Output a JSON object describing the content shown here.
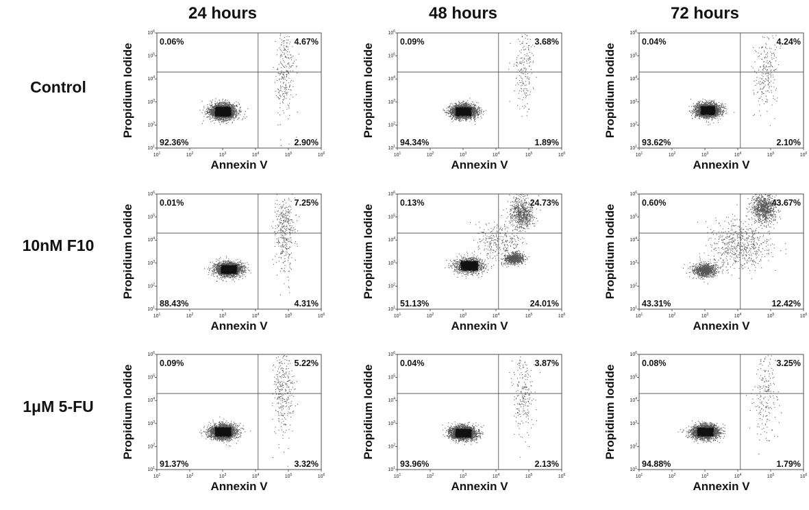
{
  "figure": {
    "column_titles": [
      "24 hours",
      "48 hours",
      "72 hours"
    ],
    "row_titles": [
      "Control",
      "10nM F10",
      "1μM 5-FU"
    ]
  },
  "chart_data": [
    {
      "type": "scatter",
      "row": "Control",
      "column": "24 hours",
      "xlabel": "Annexin V",
      "ylabel": "Propidium Iodide",
      "xscale": "log",
      "yscale": "log",
      "xlim": [
        10,
        1000000
      ],
      "ylim": [
        10,
        1000000
      ],
      "quadrant_gate": {
        "x": 12000,
        "y": 20000
      },
      "quadrants": {
        "upper_left": "0.06%",
        "upper_right": "4.67%",
        "lower_left": "92.36%",
        "lower_right": "2.90%"
      },
      "clusters": [
        {
          "x": 1000,
          "y": 400,
          "spread_x": 0.2,
          "spread_y": 0.17,
          "n": 2600
        },
        {
          "x": 75000,
          "y": 20000,
          "spread_x": 0.15,
          "spread_y": 0.9,
          "n": 260
        }
      ]
    },
    {
      "type": "scatter",
      "row": "Control",
      "column": "48 hours",
      "xlabel": "Annexin V",
      "ylabel": "Propidium Iodide",
      "xscale": "log",
      "yscale": "log",
      "xlim": [
        10,
        1000000
      ],
      "ylim": [
        10,
        1000000
      ],
      "quadrant_gate": {
        "x": 12000,
        "y": 20000
      },
      "quadrants": {
        "upper_left": "0.09%",
        "upper_right": "3.68%",
        "lower_left": "94.34%",
        "lower_right": "1.89%"
      },
      "clusters": [
        {
          "x": 1000,
          "y": 400,
          "spread_x": 0.2,
          "spread_y": 0.15,
          "n": 2600
        },
        {
          "x": 70000,
          "y": 30000,
          "spread_x": 0.15,
          "spread_y": 0.9,
          "n": 200
        }
      ]
    },
    {
      "type": "scatter",
      "row": "Control",
      "column": "72 hours",
      "xlabel": "Annexin V",
      "ylabel": "Propidium Iodide",
      "xscale": "log",
      "yscale": "log",
      "xlim": [
        10,
        1000000
      ],
      "ylim": [
        10,
        1000000
      ],
      "quadrant_gate": {
        "x": 12000,
        "y": 20000
      },
      "quadrants": {
        "upper_left": "0.04%",
        "upper_right": "4.24%",
        "lower_left": "93.62%",
        "lower_right": "2.10%"
      },
      "clusters": [
        {
          "x": 1200,
          "y": 450,
          "spread_x": 0.18,
          "spread_y": 0.15,
          "n": 2600
        },
        {
          "x": 70000,
          "y": 25000,
          "spread_x": 0.18,
          "spread_y": 0.9,
          "n": 230
        }
      ]
    },
    {
      "type": "scatter",
      "row": "10nM F10",
      "column": "24 hours",
      "xlabel": "Annexin V",
      "ylabel": "Propidium Iodide",
      "xscale": "log",
      "yscale": "log",
      "xlim": [
        10,
        1000000
      ],
      "ylim": [
        10,
        1000000
      ],
      "quadrant_gate": {
        "x": 12000,
        "y": 20000
      },
      "quadrants": {
        "upper_left": "0.01%",
        "upper_right": "7.25%",
        "lower_left": "88.43%",
        "lower_right": "4.31%"
      },
      "clusters": [
        {
          "x": 1500,
          "y": 550,
          "spread_x": 0.2,
          "spread_y": 0.15,
          "n": 2500
        },
        {
          "x": 75000,
          "y": 25000,
          "spread_x": 0.15,
          "spread_y": 0.9,
          "n": 380
        }
      ]
    },
    {
      "type": "scatter",
      "row": "10nM F10",
      "column": "48 hours",
      "xlabel": "Annexin V",
      "ylabel": "Propidium Iodide",
      "xscale": "log",
      "yscale": "log",
      "xlim": [
        10,
        1000000
      ],
      "ylim": [
        10,
        1000000
      ],
      "quadrant_gate": {
        "x": 12000,
        "y": 20000
      },
      "quadrants": {
        "upper_left": "0.13%",
        "upper_right": "24.73%",
        "lower_left": "51.13%",
        "lower_right": "24.01%"
      },
      "clusters": [
        {
          "x": 1500,
          "y": 800,
          "spread_x": 0.22,
          "spread_y": 0.17,
          "n": 1200
        },
        {
          "x": 35000,
          "y": 1600,
          "spread_x": 0.14,
          "spread_y": 0.12,
          "n": 700
        },
        {
          "x": 60000,
          "y": 150000,
          "spread_x": 0.18,
          "spread_y": 0.35,
          "n": 700
        },
        {
          "x": 12000,
          "y": 8000,
          "spread_x": 0.35,
          "spread_y": 0.45,
          "n": 300
        }
      ]
    },
    {
      "type": "scatter",
      "row": "10nM F10",
      "column": "72 hours",
      "xlabel": "Annexin V",
      "ylabel": "Propidium Iodide",
      "xscale": "log",
      "yscale": "log",
      "xlim": [
        10,
        1000000
      ],
      "ylim": [
        10,
        1000000
      ],
      "quadrant_gate": {
        "x": 12000,
        "y": 20000
      },
      "quadrants": {
        "upper_left": "0.60%",
        "upper_right": "43.67%",
        "lower_left": "43.31%",
        "lower_right": "12.42%"
      },
      "clusters": [
        {
          "x": 1000,
          "y": 500,
          "spread_x": 0.18,
          "spread_y": 0.15,
          "n": 900
        },
        {
          "x": 60000,
          "y": 250000,
          "spread_x": 0.18,
          "spread_y": 0.3,
          "n": 900
        },
        {
          "x": 12000,
          "y": 6000,
          "spread_x": 0.45,
          "spread_y": 0.55,
          "n": 600
        }
      ]
    },
    {
      "type": "scatter",
      "row": "1μM 5-FU",
      "column": "24 hours",
      "xlabel": "Annexin V",
      "ylabel": "Propidium Iodide",
      "xscale": "log",
      "yscale": "log",
      "xlim": [
        10,
        1000000
      ],
      "ylim": [
        10,
        1000000
      ],
      "quadrant_gate": {
        "x": 12000,
        "y": 20000
      },
      "quadrants": {
        "upper_left": "0.09%",
        "upper_right": "5.22%",
        "lower_left": "91.37%",
        "lower_right": "3.32%"
      },
      "clusters": [
        {
          "x": 1000,
          "y": 450,
          "spread_x": 0.2,
          "spread_y": 0.16,
          "n": 2600
        },
        {
          "x": 70000,
          "y": 20000,
          "spread_x": 0.15,
          "spread_y": 0.9,
          "n": 300
        }
      ]
    },
    {
      "type": "scatter",
      "row": "1μM 5-FU",
      "column": "48 hours",
      "xlabel": "Annexin V",
      "ylabel": "Propidium Iodide",
      "xscale": "log",
      "yscale": "log",
      "xlim": [
        10,
        1000000
      ],
      "ylim": [
        10,
        1000000
      ],
      "quadrant_gate": {
        "x": 12000,
        "y": 20000
      },
      "quadrants": {
        "upper_left": "0.04%",
        "upper_right": "3.87%",
        "lower_left": "93.96%",
        "lower_right": "2.13%"
      },
      "clusters": [
        {
          "x": 1000,
          "y": 400,
          "spread_x": 0.2,
          "spread_y": 0.15,
          "n": 2600
        },
        {
          "x": 65000,
          "y": 20000,
          "spread_x": 0.15,
          "spread_y": 0.9,
          "n": 220
        }
      ]
    },
    {
      "type": "scatter",
      "row": "1μM 5-FU",
      "column": "72 hours",
      "xlabel": "Annexin V",
      "ylabel": "Propidium Iodide",
      "xscale": "log",
      "yscale": "log",
      "xlim": [
        10,
        1000000
      ],
      "ylim": [
        10,
        1000000
      ],
      "quadrant_gate": {
        "x": 12000,
        "y": 20000
      },
      "quadrants": {
        "upper_left": "0.08%",
        "upper_right": "3.25%",
        "lower_left": "94.88%",
        "lower_right": "1.79%"
      },
      "clusters": [
        {
          "x": 1000,
          "y": 450,
          "spread_x": 0.2,
          "spread_y": 0.15,
          "n": 2600
        },
        {
          "x": 65000,
          "y": 20000,
          "spread_x": 0.18,
          "spread_y": 0.9,
          "n": 200
        }
      ]
    }
  ]
}
